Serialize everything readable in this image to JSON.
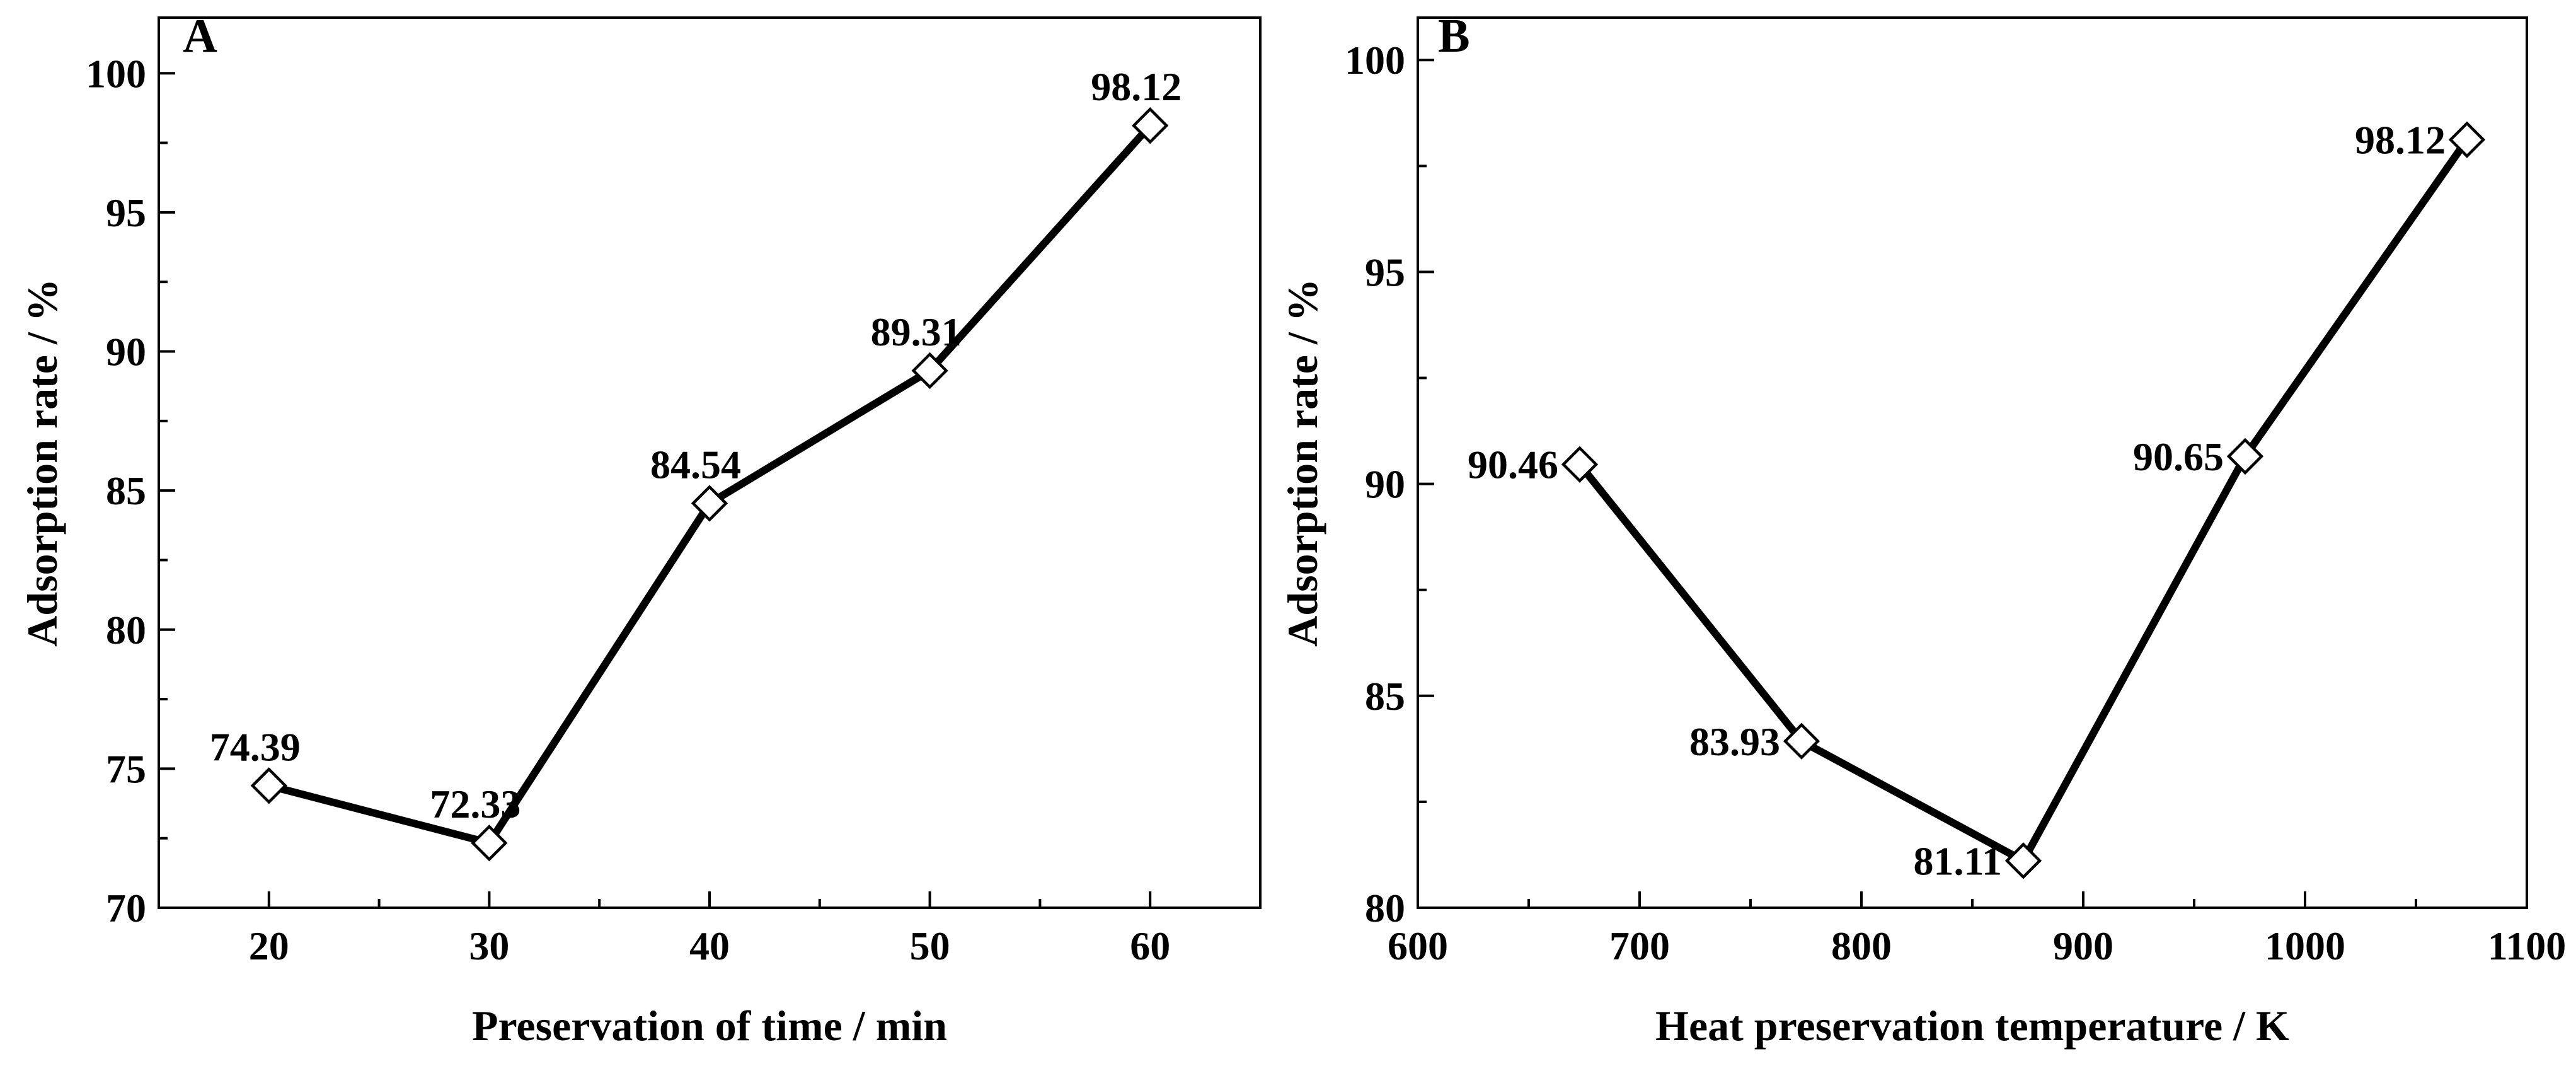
{
  "chart_data": [
    {
      "type": "line",
      "panel_label": "A",
      "xlabel": "Preservation of time / min",
      "ylabel": "Adsorption rate / %",
      "xlim": [
        15,
        65
      ],
      "ylim": [
        70,
        102
      ],
      "xticks": [
        20,
        30,
        40,
        50,
        60
      ],
      "yticks": [
        70,
        75,
        80,
        85,
        90,
        95,
        100
      ],
      "grid": false,
      "marker": "open-diamond",
      "series": [
        {
          "name": "Adsorption rate",
          "x": [
            20,
            30,
            40,
            50,
            60
          ],
          "values": [
            74.39,
            72.33,
            84.54,
            89.31,
            98.12
          ],
          "labels": [
            "74.39",
            "72.33",
            "84.54",
            "89.31",
            "98.12"
          ],
          "label_side": [
            "above",
            "above",
            "above",
            "above",
            "above"
          ]
        }
      ]
    },
    {
      "type": "line",
      "panel_label": "B",
      "xlabel": "Heat preservation temperature / K",
      "ylabel": "Adsorption rate / %",
      "xlim": [
        600,
        1100
      ],
      "ylim": [
        80,
        101
      ],
      "xticks": [
        600,
        700,
        800,
        900,
        1000,
        1100
      ],
      "yticks": [
        80,
        85,
        90,
        95,
        100
      ],
      "grid": false,
      "marker": "open-diamond",
      "series": [
        {
          "name": "Adsorption rate",
          "x": [
            673,
            773,
            873,
            973,
            1073
          ],
          "values": [
            90.46,
            83.93,
            81.11,
            90.65,
            98.12
          ],
          "labels": [
            "90.46",
            "83.93",
            "81.11",
            "90.65",
            "98.12"
          ],
          "label_side": [
            "left",
            "left",
            "left",
            "left",
            "left"
          ]
        }
      ]
    }
  ],
  "colors": {
    "line": "#000000",
    "marker_fill": "#ffffff",
    "background": "#ffffff"
  }
}
